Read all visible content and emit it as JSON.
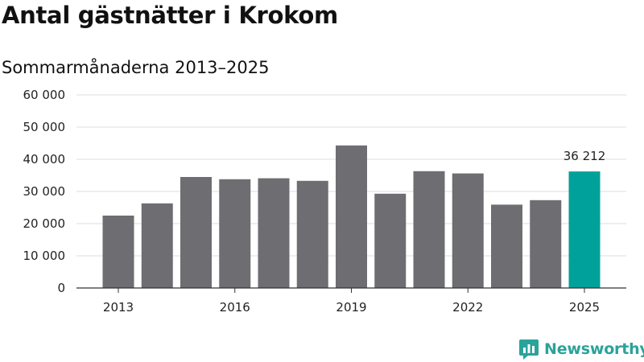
{
  "title": "Antal gästnätter i Krokom",
  "subtitle": "Sommarmånaderna 2013–2025",
  "brand": {
    "name": "Newsworthy",
    "icon": "newsworthy-logo-icon"
  },
  "colors": {
    "bar": "#6e6d72",
    "highlight": "#00a19a",
    "grid": "#dcdcdc",
    "axis": "#333333",
    "brand": "#2aa39a"
  },
  "chart_data": {
    "type": "bar",
    "title": "Antal gästnätter i Krokom",
    "subtitle": "Sommarmånaderna 2013–2025",
    "xlabel": "",
    "ylabel": "",
    "categories": [
      "2013",
      "2014",
      "2015",
      "2016",
      "2017",
      "2018",
      "2019",
      "2020",
      "2021",
      "2022",
      "2023",
      "2024",
      "2025"
    ],
    "values": [
      22500,
      26300,
      34500,
      33800,
      34100,
      33300,
      44300,
      29300,
      36300,
      35600,
      25900,
      27300,
      36212
    ],
    "x_tick_labels": [
      "2013",
      "2016",
      "2019",
      "2022",
      "2025"
    ],
    "y_ticks": [
      0,
      10000,
      20000,
      30000,
      40000,
      50000,
      60000
    ],
    "y_tick_labels": [
      "0",
      "10 000",
      "20 000",
      "30 000",
      "40 000",
      "50 000",
      "60 000"
    ],
    "ylim": [
      0,
      60000
    ],
    "highlight_category": "2025",
    "data_labels": [
      {
        "category": "2025",
        "text": "36 212"
      }
    ],
    "grid": true,
    "legend": "none"
  }
}
